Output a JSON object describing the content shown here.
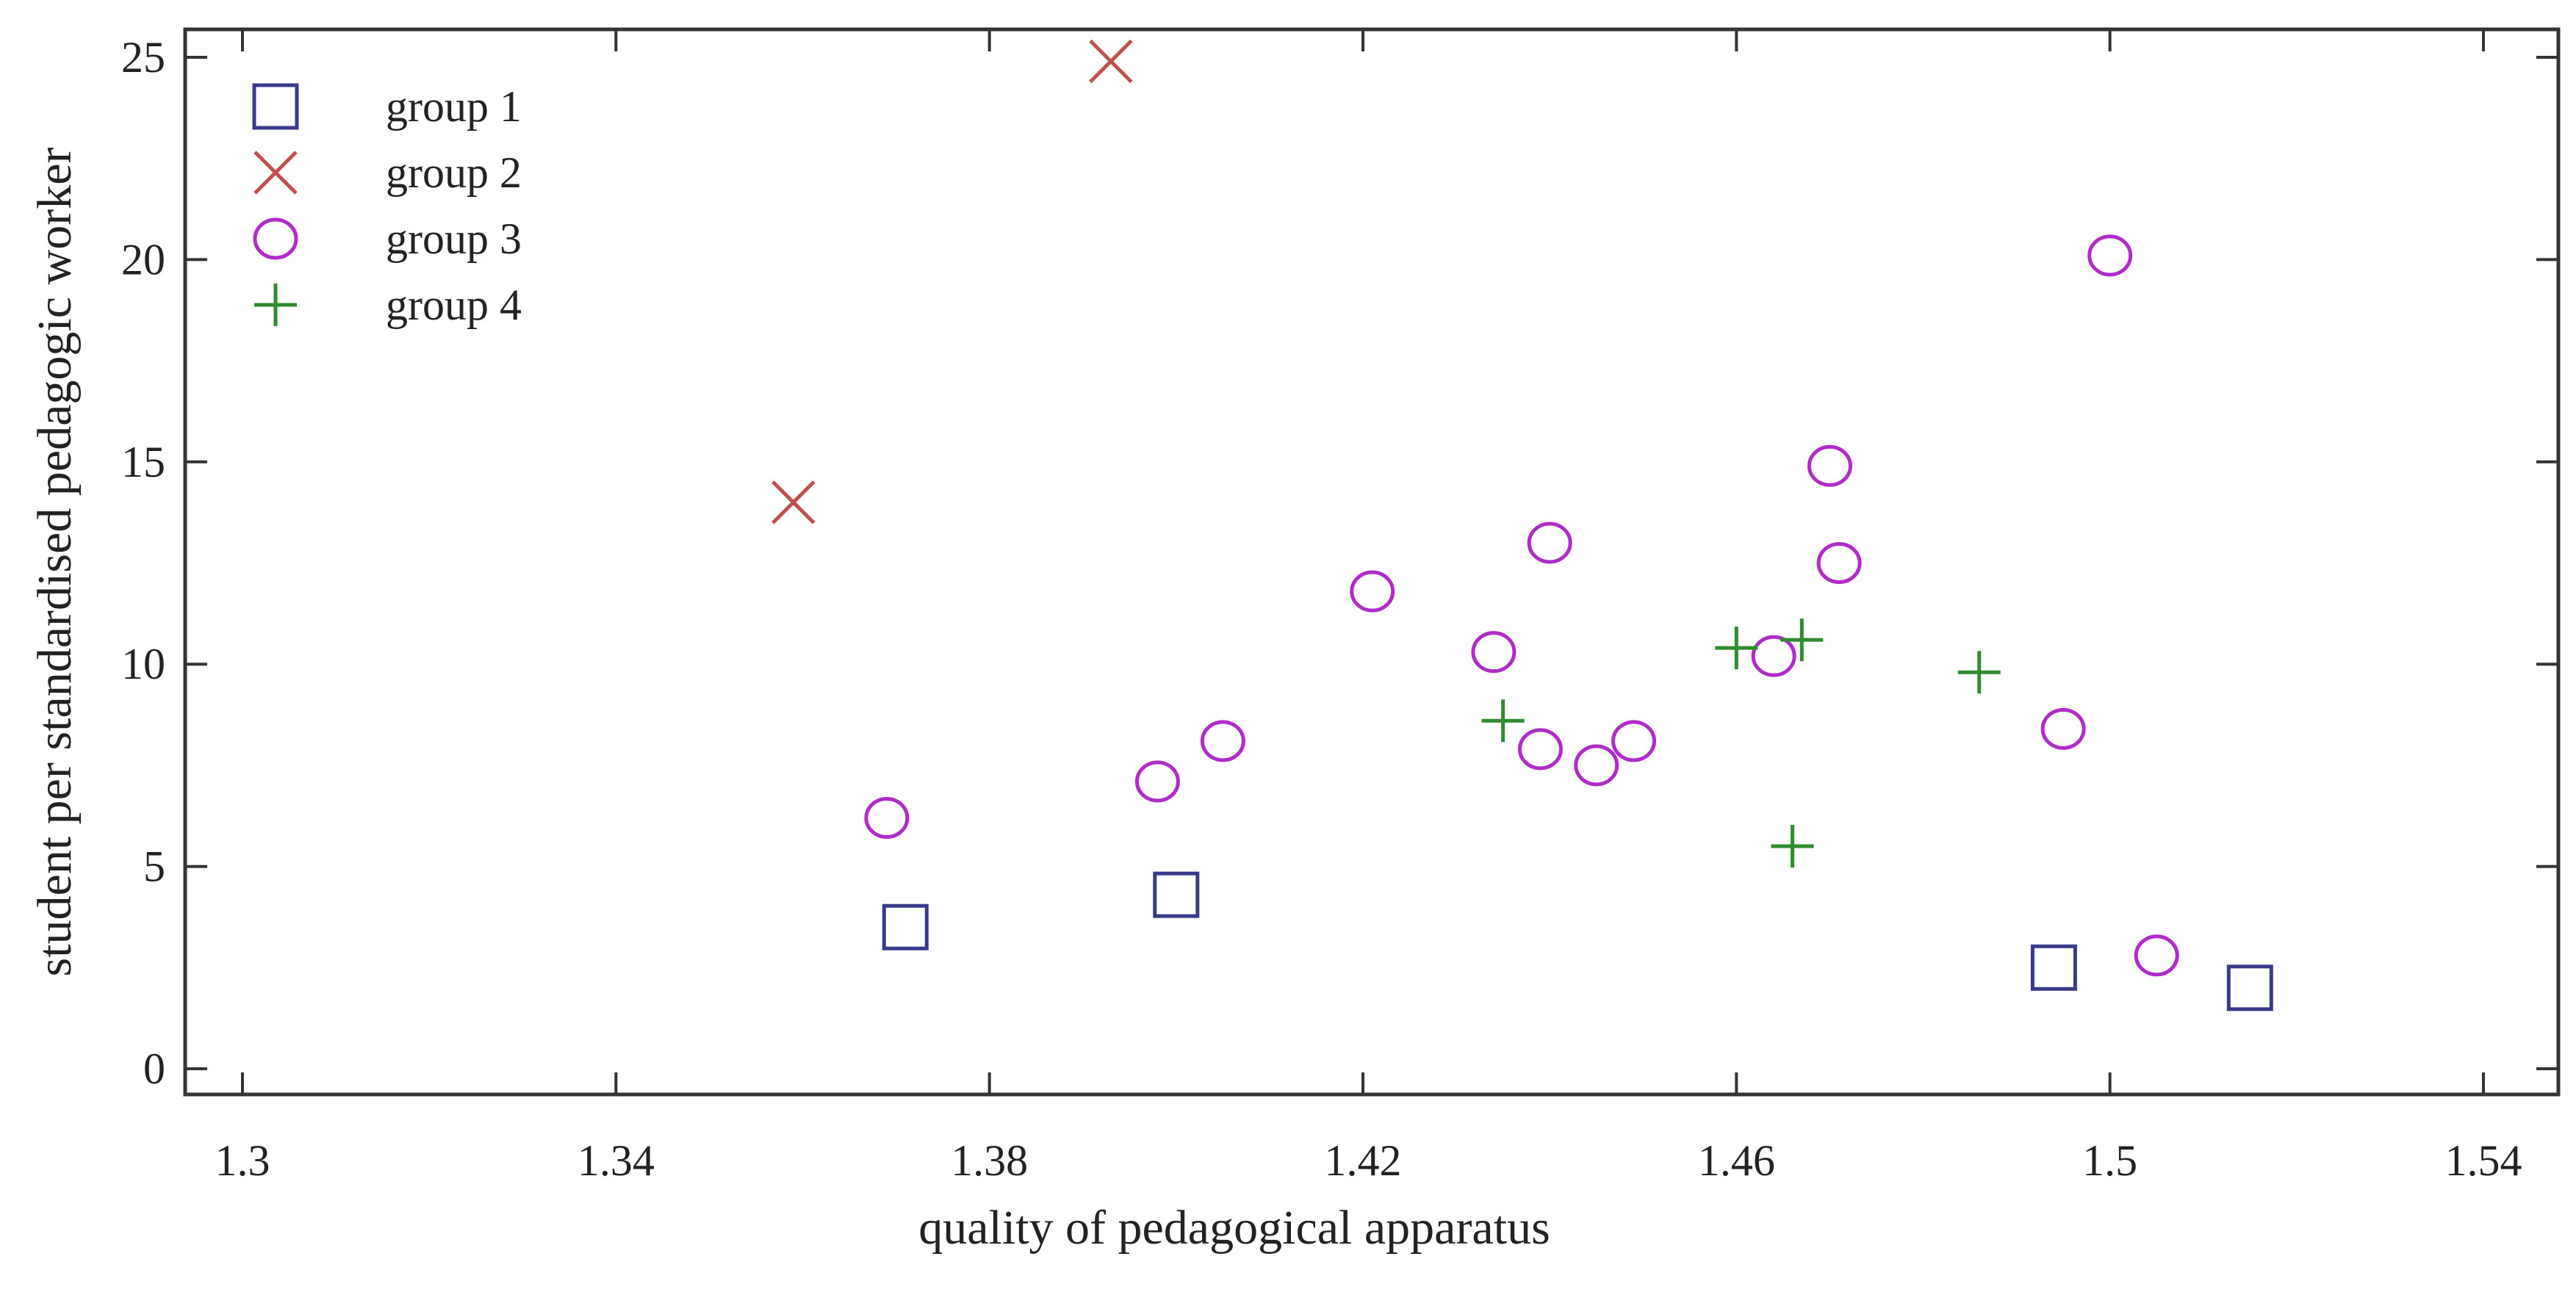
{
  "chart_data": {
    "type": "scatter",
    "xlabel": "quality of pedagogical apparatus",
    "ylabel": "student per standardised pedagogic worker",
    "xlim": [
      1.3,
      1.54
    ],
    "ylim": [
      0,
      25
    ],
    "x_ticks": [
      "1.3",
      "1.34",
      "1.38",
      "1.42",
      "1.46",
      "1.5",
      "1.54"
    ],
    "y_ticks": [
      "0",
      "5",
      "10",
      "15",
      "20",
      "25"
    ],
    "x_tick_values": [
      1.3,
      1.34,
      1.38,
      1.42,
      1.46,
      1.5,
      1.54
    ],
    "y_tick_values": [
      0,
      5,
      10,
      15,
      20,
      25
    ],
    "grid": false,
    "legend_position": "top-left",
    "series": [
      {
        "name": "group 1",
        "marker": "square",
        "color": "#3a3a8c",
        "points": [
          [
            1.371,
            3.5
          ],
          [
            1.4,
            4.3
          ],
          [
            1.494,
            2.5
          ],
          [
            1.515,
            2.0
          ]
        ]
      },
      {
        "name": "group 2",
        "marker": "x",
        "color": "#c0504d",
        "points": [
          [
            1.359,
            14.0
          ],
          [
            1.393,
            24.9
          ]
        ]
      },
      {
        "name": "group 3",
        "marker": "circle",
        "color": "#b02cc8",
        "points": [
          [
            1.369,
            6.2
          ],
          [
            1.398,
            7.1
          ],
          [
            1.405,
            8.1
          ],
          [
            1.421,
            11.8
          ],
          [
            1.434,
            10.3
          ],
          [
            1.439,
            7.9
          ],
          [
            1.44,
            13.0
          ],
          [
            1.445,
            7.5
          ],
          [
            1.449,
            8.1
          ],
          [
            1.464,
            10.2
          ],
          [
            1.47,
            14.9
          ],
          [
            1.471,
            12.5
          ],
          [
            1.495,
            8.4
          ],
          [
            1.5,
            20.1
          ],
          [
            1.505,
            2.8
          ]
        ]
      },
      {
        "name": "group 4",
        "marker": "plus",
        "color": "#2e8b2e",
        "points": [
          [
            1.435,
            8.6
          ],
          [
            1.46,
            10.4
          ],
          [
            1.466,
            5.5
          ],
          [
            1.467,
            10.6
          ],
          [
            1.486,
            9.8
          ]
        ]
      }
    ]
  }
}
